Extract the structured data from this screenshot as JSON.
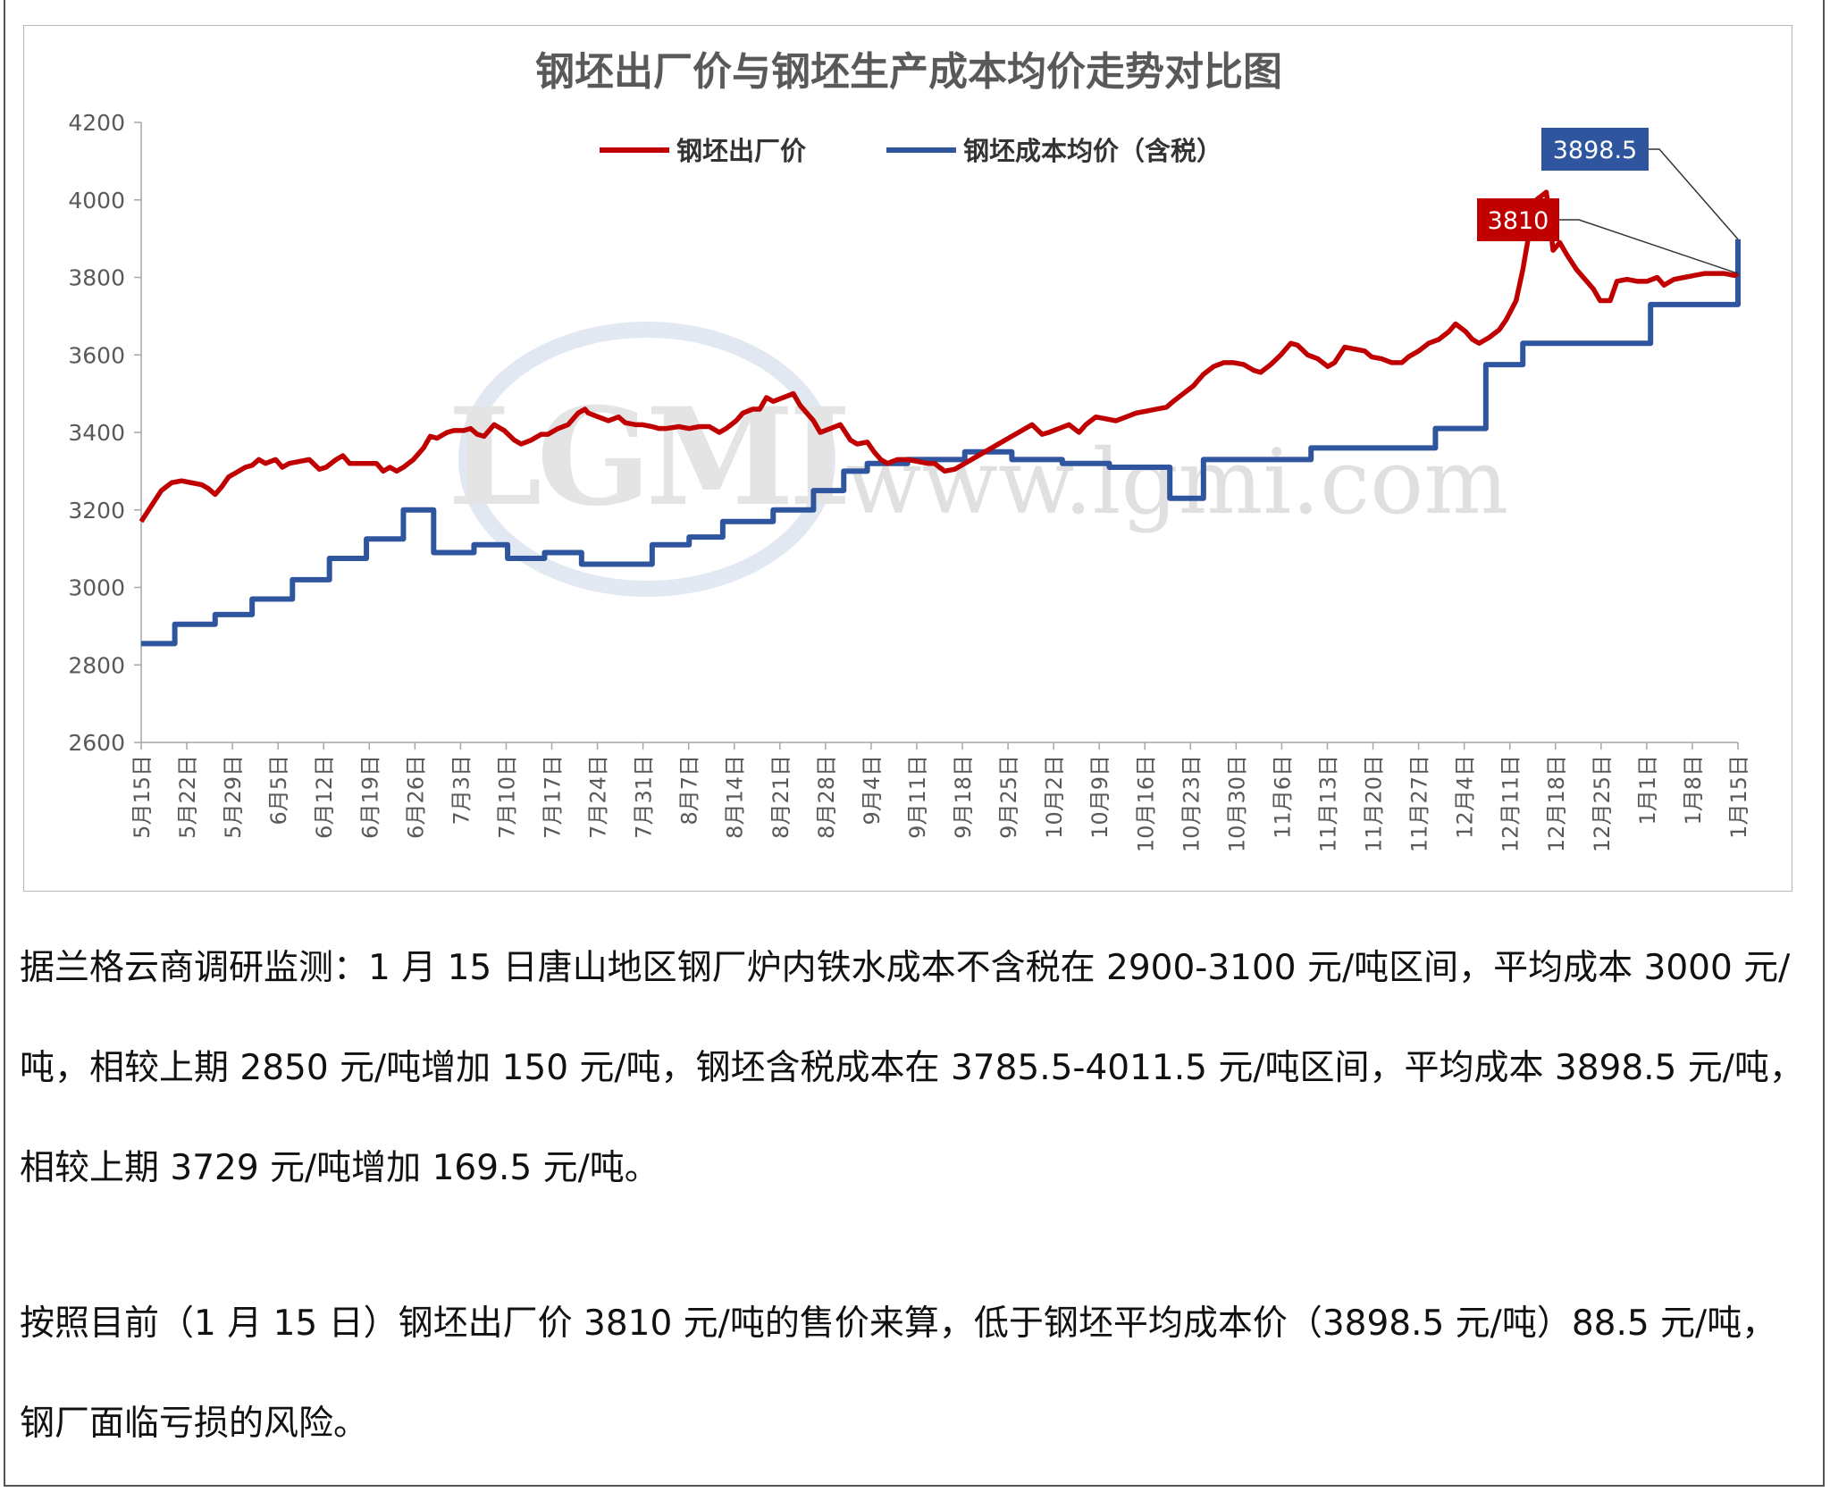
{
  "chart_data": {
    "type": "line",
    "title": "钢坯出厂价与钢坯生产成本均价走势对比图",
    "ylim": [
      2600,
      4200
    ],
    "yticks": [
      2600,
      2800,
      3000,
      3200,
      3400,
      3600,
      3800,
      4000,
      4200
    ],
    "categories": [
      "5月15日",
      "5月22日",
      "5月29日",
      "6月5日",
      "6月12日",
      "6月19日",
      "6月26日",
      "7月3日",
      "7月10日",
      "7月17日",
      "7月24日",
      "7月31日",
      "8月7日",
      "8月14日",
      "8月21日",
      "8月28日",
      "9月4日",
      "9月11日",
      "9月18日",
      "9月25日",
      "10月2日",
      "10月9日",
      "10月16日",
      "10月23日",
      "10月30日",
      "11月6日",
      "11月13日",
      "11月20日",
      "11月27日",
      "12月4日",
      "12月11日",
      "12月18日",
      "12月25日",
      "1月1日",
      "1月8日",
      "1月15日"
    ],
    "legend_position": "top",
    "grid": false,
    "series": [
      {
        "name": "钢坯出厂价",
        "color": "#c00000",
        "points": [
          [
            0,
            3170
          ],
          [
            0.3,
            3210
          ],
          [
            0.6,
            3250
          ],
          [
            0.9,
            3270
          ],
          [
            1.2,
            3275
          ],
          [
            1.5,
            3270
          ],
          [
            1.8,
            3265
          ],
          [
            2.0,
            3255
          ],
          [
            2.2,
            3240
          ],
          [
            2.4,
            3260
          ],
          [
            2.6,
            3285
          ],
          [
            2.9,
            3300
          ],
          [
            3.1,
            3310
          ],
          [
            3.3,
            3315
          ],
          [
            3.5,
            3330
          ],
          [
            3.7,
            3320
          ],
          [
            4.0,
            3330
          ],
          [
            4.2,
            3310
          ],
          [
            4.4,
            3320
          ],
          [
            4.7,
            3325
          ],
          [
            5.0,
            3330
          ],
          [
            5.3,
            3305
          ],
          [
            5.5,
            3310
          ],
          [
            5.8,
            3330
          ],
          [
            6.0,
            3340
          ],
          [
            6.2,
            3320
          ],
          [
            6.5,
            3320
          ],
          [
            6.8,
            3320
          ],
          [
            7.0,
            3320
          ],
          [
            7.2,
            3300
          ],
          [
            7.4,
            3310
          ],
          [
            7.6,
            3300
          ],
          [
            7.8,
            3310
          ],
          [
            8.1,
            3330
          ],
          [
            8.4,
            3360
          ],
          [
            8.6,
            3390
          ],
          [
            8.8,
            3385
          ],
          [
            9.1,
            3400
          ],
          [
            9.3,
            3405
          ],
          [
            9.6,
            3405
          ],
          [
            9.8,
            3410
          ],
          [
            10.0,
            3395
          ],
          [
            10.2,
            3390
          ],
          [
            10.5,
            3420
          ],
          [
            10.8,
            3405
          ],
          [
            11.1,
            3380
          ],
          [
            11.3,
            3370
          ],
          [
            11.6,
            3380
          ],
          [
            11.9,
            3395
          ],
          [
            12.1,
            3395
          ],
          [
            12.4,
            3410
          ],
          [
            12.7,
            3420
          ],
          [
            13.0,
            3450
          ],
          [
            13.2,
            3460
          ],
          [
            13.3,
            3450
          ],
          [
            13.6,
            3440
          ],
          [
            13.9,
            3430
          ],
          [
            14.2,
            3440
          ],
          [
            14.4,
            3425
          ],
          [
            14.7,
            3420
          ],
          [
            14.9,
            3420
          ],
          [
            15.2,
            3415
          ],
          [
            15.4,
            3410
          ],
          [
            15.6,
            3410
          ],
          [
            16.0,
            3415
          ],
          [
            16.3,
            3410
          ],
          [
            16.6,
            3415
          ],
          [
            16.9,
            3415
          ],
          [
            17.2,
            3400
          ],
          [
            17.4,
            3410
          ],
          [
            17.7,
            3430
          ],
          [
            17.9,
            3450
          ],
          [
            18.2,
            3460
          ],
          [
            18.4,
            3460
          ],
          [
            18.6,
            3490
          ],
          [
            18.8,
            3480
          ],
          [
            19.1,
            3490
          ],
          [
            19.4,
            3500
          ],
          [
            19.6,
            3470
          ],
          [
            20.0,
            3430
          ],
          [
            20.2,
            3400
          ],
          [
            20.5,
            3410
          ],
          [
            20.8,
            3420
          ],
          [
            21.1,
            3380
          ],
          [
            21.3,
            3370
          ],
          [
            21.6,
            3375
          ],
          [
            21.8,
            3350
          ],
          [
            22.0,
            3330
          ],
          [
            22.2,
            3320
          ],
          [
            22.5,
            3330
          ],
          [
            22.8,
            3330
          ],
          [
            23.1,
            3325
          ],
          [
            23.4,
            3320
          ],
          [
            23.6,
            3320
          ],
          [
            23.9,
            3300
          ],
          [
            24.2,
            3305
          ],
          [
            24.5,
            3320
          ],
          [
            24.8,
            3335
          ],
          [
            25.1,
            3350
          ],
          [
            25.4,
            3365
          ],
          [
            25.7,
            3380
          ],
          [
            26.0,
            3395
          ],
          [
            26.3,
            3410
          ],
          [
            26.5,
            3420
          ],
          [
            26.8,
            3395
          ],
          [
            27.0,
            3400
          ],
          [
            27.3,
            3410
          ],
          [
            27.6,
            3420
          ],
          [
            27.9,
            3400
          ],
          [
            28.1,
            3420
          ],
          [
            28.4,
            3440
          ],
          [
            28.7,
            3435
          ],
          [
            29.0,
            3430
          ],
          [
            29.3,
            3440
          ],
          [
            29.6,
            3450
          ],
          [
            29.9,
            3455
          ],
          [
            30.2,
            3460
          ],
          [
            30.5,
            3465
          ],
          [
            30.7,
            3480
          ],
          [
            31.0,
            3500
          ],
          [
            31.3,
            3520
          ],
          [
            31.6,
            3550
          ],
          [
            31.9,
            3570
          ],
          [
            32.2,
            3580
          ],
          [
            32.5,
            3580
          ],
          [
            32.8,
            3575
          ],
          [
            33.1,
            3560
          ],
          [
            33.3,
            3555
          ],
          [
            33.6,
            3575
          ],
          [
            33.9,
            3600
          ],
          [
            34.2,
            3630
          ],
          [
            34.4,
            3625
          ],
          [
            34.7,
            3600
          ],
          [
            35.0,
            3590
          ],
          [
            35.3,
            3570
          ],
          [
            35.5,
            3580
          ],
          [
            35.8,
            3620
          ],
          [
            36.1,
            3615
          ],
          [
            36.4,
            3610
          ],
          [
            36.6,
            3595
          ],
          [
            36.9,
            3590
          ],
          [
            37.2,
            3580
          ],
          [
            37.5,
            3580
          ],
          [
            37.7,
            3595
          ],
          [
            38.0,
            3610
          ],
          [
            38.3,
            3630
          ],
          [
            38.6,
            3640
          ],
          [
            38.9,
            3660
          ],
          [
            39.1,
            3680
          ],
          [
            39.4,
            3660
          ],
          [
            39.6,
            3640
          ],
          [
            39.8,
            3630
          ],
          [
            40.1,
            3645
          ],
          [
            40.4,
            3665
          ],
          [
            40.6,
            3690
          ],
          [
            40.9,
            3740
          ],
          [
            41.1,
            3820
          ],
          [
            41.3,
            3920
          ],
          [
            41.5,
            4000
          ],
          [
            41.8,
            4020
          ],
          [
            42.0,
            3870
          ],
          [
            42.2,
            3890
          ],
          [
            42.4,
            3860
          ],
          [
            42.7,
            3820
          ],
          [
            43.0,
            3790
          ],
          [
            43.2,
            3770
          ],
          [
            43.4,
            3740
          ],
          [
            43.7,
            3740
          ],
          [
            43.9,
            3790
          ],
          [
            44.2,
            3795
          ],
          [
            44.5,
            3790
          ],
          [
            44.8,
            3790
          ],
          [
            45.1,
            3800
          ],
          [
            45.3,
            3780
          ],
          [
            45.6,
            3795
          ],
          [
            45.9,
            3800
          ],
          [
            46.2,
            3805
          ],
          [
            46.5,
            3810
          ],
          [
            46.8,
            3810
          ],
          [
            47.1,
            3810
          ],
          [
            47.4,
            3805
          ],
          [
            47.5,
            3810
          ]
        ]
      },
      {
        "name": "钢坯成本均价（含税）",
        "color": "#2e559e",
        "steps": [
          [
            0,
            2855
          ],
          [
            1.0,
            2905
          ],
          [
            2.2,
            2930
          ],
          [
            3.3,
            2970
          ],
          [
            4.5,
            3020
          ],
          [
            5.6,
            3075
          ],
          [
            6.7,
            3125
          ],
          [
            7.8,
            3200
          ],
          [
            8.7,
            3090
          ],
          [
            9.9,
            3110
          ],
          [
            10.9,
            3075
          ],
          [
            12.0,
            3090
          ],
          [
            13.1,
            3060
          ],
          [
            15.2,
            3110
          ],
          [
            16.3,
            3130
          ],
          [
            17.3,
            3170
          ],
          [
            18.8,
            3200
          ],
          [
            20.0,
            3250
          ],
          [
            20.9,
            3300
          ],
          [
            21.6,
            3320
          ],
          [
            22.8,
            3330
          ],
          [
            24.5,
            3350
          ],
          [
            25.9,
            3330
          ],
          [
            27.4,
            3320
          ],
          [
            28.8,
            3310
          ],
          [
            30.6,
            3230
          ],
          [
            31.6,
            3330
          ],
          [
            34.8,
            3360
          ],
          [
            37.0,
            3360
          ],
          [
            38.5,
            3410
          ],
          [
            40.0,
            3575
          ],
          [
            41.1,
            3630
          ],
          [
            43.8,
            3630
          ],
          [
            44.9,
            3730
          ],
          [
            46.1,
            3730
          ],
          [
            47.5,
            3898.5
          ]
        ]
      }
    ],
    "annotations": [
      {
        "text": "3898.5",
        "value": 3898.5,
        "series": "钢坯成本均价（含税）"
      },
      {
        "text": "3810",
        "value": 3810,
        "series": "钢坯出厂价"
      }
    ],
    "watermark": {
      "logo": "LGMI",
      "url": "www.lgmi.com"
    }
  },
  "text": {
    "para1": "据兰格云商调研监测：1 月 15 日唐山地区钢厂炉内铁水成本不含税在 2900-3100 元/吨区间，平均成本 3000 元/吨，相较上期 2850 元/吨增加 150 元/吨，钢坯含税成本在 3785.5-4011.5 元/吨区间，平均成本 3898.5 元/吨，相较上期 3729 元/吨增加 169.5 元/吨。",
    "para2": "按照目前（1 月 15 日）钢坯出厂价 3810 元/吨的售价来算，低于钢坯平均成本价（3898.5 元/吨）88.5 元/吨，钢厂面临亏损的风险。"
  }
}
